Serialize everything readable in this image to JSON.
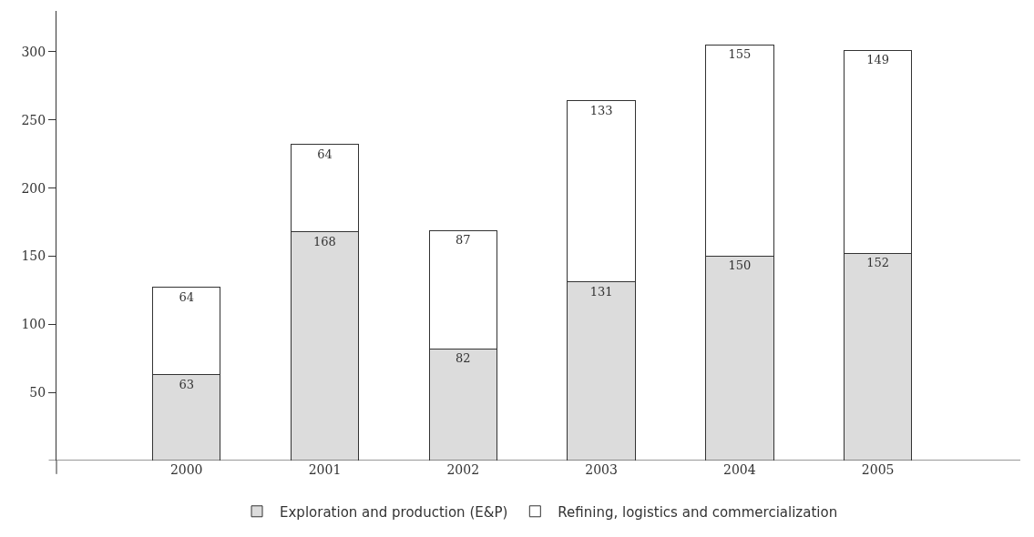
{
  "chart_data": {
    "type": "bar",
    "stacked": true,
    "categories": [
      "2000",
      "2001",
      "2002",
      "2003",
      "2004",
      "2005"
    ],
    "series": [
      {
        "name": "Exploration and production (E&P)",
        "color": "#dcdcdc",
        "values": [
          63,
          168,
          82,
          131,
          150,
          152
        ]
      },
      {
        "name": "Refining, logistics and commercialization",
        "color": "#ffffff",
        "values": [
          64,
          64,
          87,
          133,
          155,
          149
        ]
      }
    ],
    "ylim": [
      0,
      330
    ],
    "yticks": [
      50,
      100,
      150,
      200,
      250,
      300
    ],
    "data_labels": true,
    "grid": false,
    "legend": "bottom"
  }
}
